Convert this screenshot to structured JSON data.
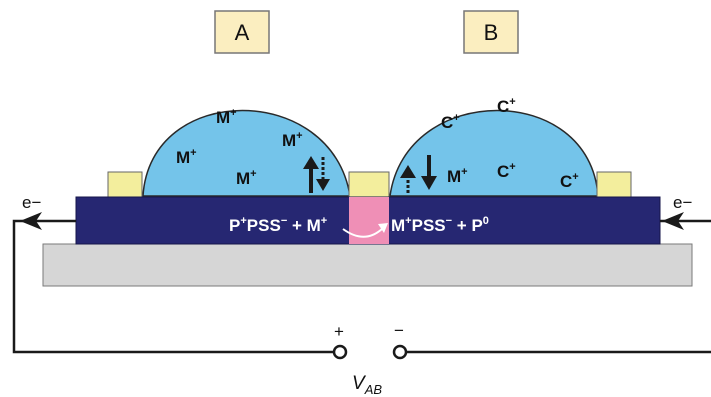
{
  "labels": {
    "box_a": "A",
    "box_b": "B",
    "electron_left": "e−",
    "electron_right": "e−",
    "plus_sign": "+",
    "minus_sign": "−",
    "voltage_main": "V",
    "voltage_sub": "AB"
  },
  "ions": {
    "m_base": "M",
    "c_base": "C",
    "sup_plus": "+",
    "left_drop": [
      "M+",
      "M+",
      "M+",
      "M+"
    ],
    "right_drop_c": [
      "C+",
      "C+",
      "C+",
      "C+"
    ],
    "right_drop_m": "M+"
  },
  "reaction": {
    "left_a": "P",
    "left_a_sup": "+",
    "left_b": "PSS",
    "left_b_sup": "−",
    "plus": " + ",
    "left_c": "M",
    "left_c_sup": "+",
    "right_a": "M",
    "right_a_sup": "+",
    "right_b": "PSS",
    "right_b_sup": "−",
    "right_c": "P",
    "right_c_sup": "0"
  },
  "colors": {
    "drop": "#74c4ea",
    "channel": "#262772",
    "substrate": "#d6d6d6",
    "electrode": "#f3ee9d",
    "gap": "#ef8fb6",
    "label_box": "#fbeec0",
    "wire": "#1a1a1a"
  }
}
